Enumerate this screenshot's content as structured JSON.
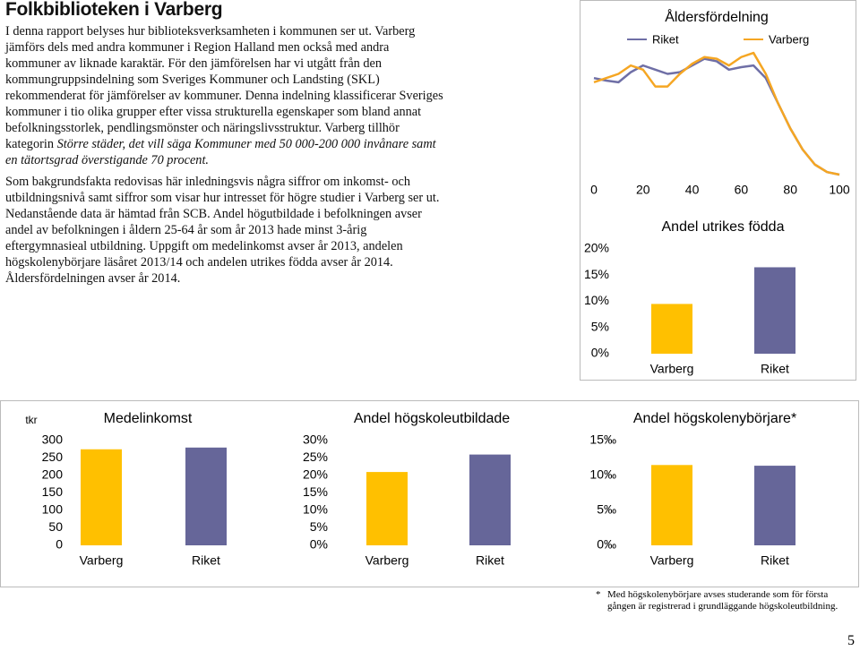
{
  "header": {
    "title": "Folkbiblioteken i Varberg"
  },
  "paragraphs": [
    {
      "text": "I denna rapport belyses hur biblioteksverksamheten i kommunen ser ut. Varberg jämförs dels med andra kommuner i Region Halland men också med andra kommuner av liknade karaktär. För den jämförelsen har vi utgått från den kommungruppsindelning som Sveriges Kommuner och Landsting (SKL) rekommenderat för jämförelser av kommuner. Denna indelning klassificerar Sveriges kommuner i tio olika grupper efter vissa strukturella egenskaper som bland annat befolkningsstorlek, pendlingsmönster och näringslivsstruktur. Varberg tillhör kategorin ",
      "emphasis": "Större städer, det vill säga Kommuner med 50 000-200 000 invånare samt en tätortsgrad överstigande 70 procent."
    },
    {
      "text": "Som bakgrundsfakta redovisas här inledningsvis några siffror om inkomst- och utbildningsnivå samt siffror som visar hur intresset för högre studier i Varberg ser ut. Nedanstående data är hämtad från SCB. Andel högutbildade i befolkningen avser andel av befolkningen i åldern 25-64 år som år 2013 hade minst 3-årig eftergymnasieal utbildning. Uppgift om medelinkomst avser år 2013, andelen högskolenybörjare läsåret 2013/14 och andelen utrikes födda avser år 2014. Åldersfördelningen avser år 2014."
    }
  ],
  "chart_data": [
    {
      "type": "line",
      "title": "Åldersfördelning",
      "x": [
        0,
        5,
        10,
        15,
        20,
        25,
        30,
        35,
        40,
        45,
        50,
        55,
        60,
        65,
        70,
        75,
        80,
        85,
        90,
        95,
        100
      ],
      "series": [
        {
          "name": "Riket",
          "color": "#6f6fa6",
          "values": [
            1.15,
            1.12,
            1.1,
            1.22,
            1.3,
            1.25,
            1.2,
            1.22,
            1.3,
            1.38,
            1.35,
            1.25,
            1.28,
            1.3,
            1.15,
            0.85,
            0.55,
            0.3,
            0.12,
            0.03,
            0
          ]
        },
        {
          "name": "Varberg",
          "color": "#f5a623",
          "values": [
            1.1,
            1.15,
            1.2,
            1.3,
            1.25,
            1.05,
            1.05,
            1.2,
            1.32,
            1.4,
            1.38,
            1.3,
            1.4,
            1.45,
            1.2,
            0.85,
            0.55,
            0.3,
            0.12,
            0.03,
            0
          ]
        }
      ],
      "xlim": [
        0,
        100
      ],
      "xticks": [
        0,
        20,
        40,
        60,
        80,
        100
      ],
      "ylim": [
        0,
        1.6
      ]
    },
    {
      "type": "bar",
      "title": "Andel utrikes födda",
      "categories": [
        "Varberg",
        "Riket"
      ],
      "values": [
        9.5,
        16.5
      ],
      "colors": [
        "#ffc000",
        "#666699"
      ],
      "ylim": [
        0,
        20
      ],
      "yticks": [
        {
          "value": 0,
          "label": "0%"
        },
        {
          "value": 5,
          "label": "5%"
        },
        {
          "value": 10,
          "label": "10%"
        },
        {
          "value": 15,
          "label": "15%"
        },
        {
          "value": 20,
          "label": "20%"
        }
      ]
    },
    {
      "type": "bar",
      "title": "Medelinkomst",
      "y_label": "tkr",
      "categories": [
        "Varberg",
        "Riket"
      ],
      "values": [
        275,
        280
      ],
      "colors": [
        "#ffc000",
        "#666699"
      ],
      "ylim": [
        0,
        300
      ],
      "yticks": [
        0,
        50,
        100,
        150,
        200,
        250,
        300
      ]
    },
    {
      "type": "bar",
      "title": "Andel högskoleutbildade",
      "categories": [
        "Varberg",
        "Riket"
      ],
      "values": [
        21,
        26
      ],
      "colors": [
        "#ffc000",
        "#666699"
      ],
      "ylim": [
        0,
        30
      ],
      "yticks": [
        {
          "value": 0,
          "label": "0%"
        },
        {
          "value": 5,
          "label": "5%"
        },
        {
          "value": 10,
          "label": "10%"
        },
        {
          "value": 15,
          "label": "15%"
        },
        {
          "value": 20,
          "label": "20%"
        },
        {
          "value": 25,
          "label": "25%"
        },
        {
          "value": 30,
          "label": "30%"
        }
      ]
    },
    {
      "type": "bar",
      "title": "Andel högskolenybörjare*",
      "categories": [
        "Varberg",
        "Riket"
      ],
      "values": [
        11.5,
        11.4
      ],
      "colors": [
        "#ffc000",
        "#666699"
      ],
      "ylim": [
        0,
        15
      ],
      "yticks": [
        {
          "value": 0,
          "label": "0‰"
        },
        {
          "value": 5,
          "label": "5‰"
        },
        {
          "value": 10,
          "label": "10‰"
        },
        {
          "value": 15,
          "label": "15‰"
        }
      ]
    }
  ],
  "footnote": {
    "marker": "*",
    "text": "Med högskolenybörjare avses studerande som för första gången är registrerad i grundläggande högskoleutbildning."
  },
  "page_number": "5"
}
